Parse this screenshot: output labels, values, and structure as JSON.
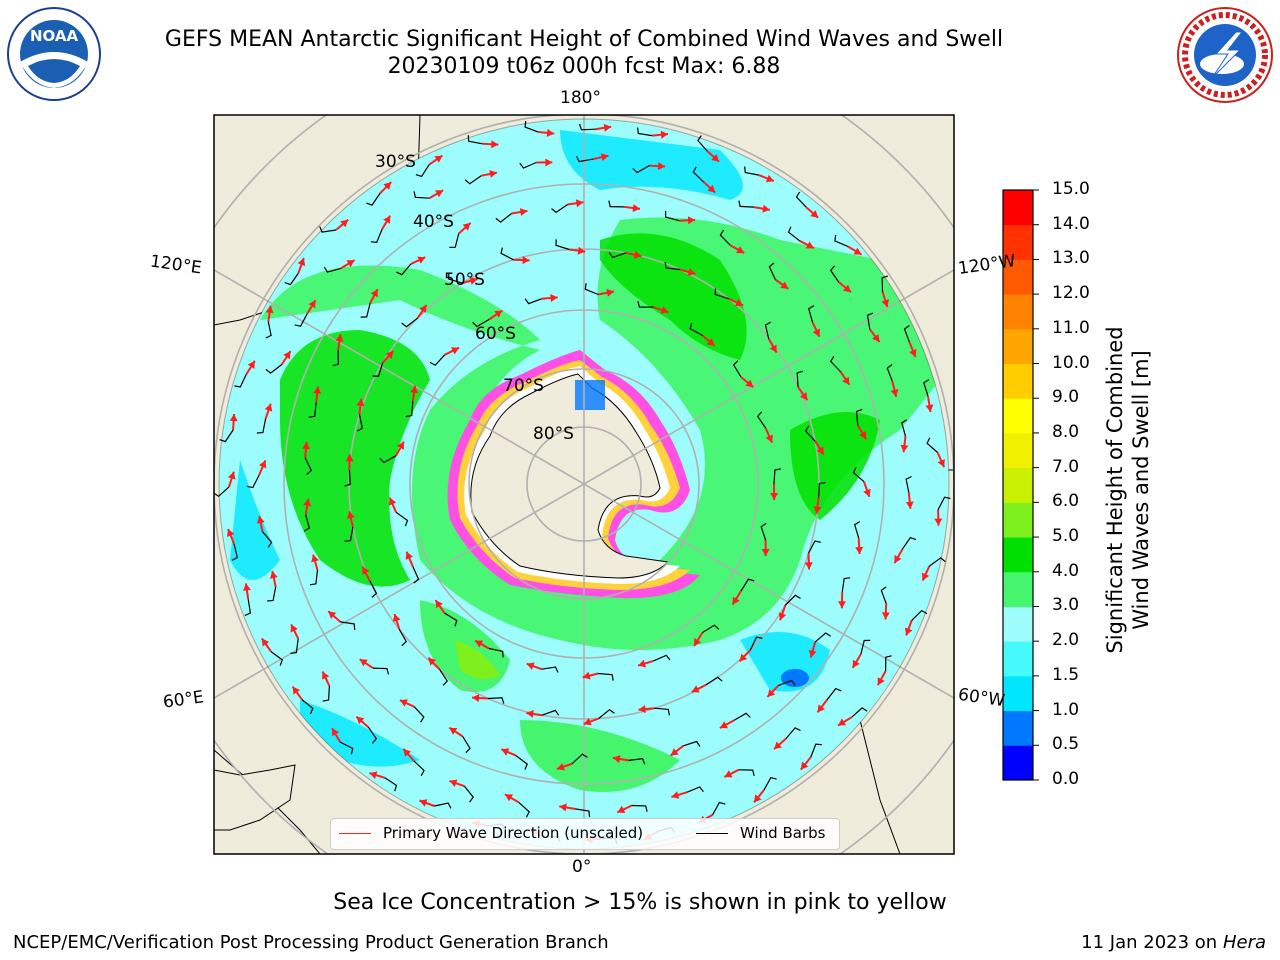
{
  "title": {
    "line1": "GEFS MEAN Antarctic Significant Height of Combined Wind Waves and Swell",
    "line2": "20230109 t06z 000h fcst   Max: 6.88"
  },
  "logos": {
    "left": "noaa-logo",
    "right": "nws-logo"
  },
  "map": {
    "projection": "south-polar-stereographic",
    "longitude_labels": [
      "180°",
      "120°E",
      "120°W",
      "60°E",
      "60°W",
      "0°"
    ],
    "latitude_labels": [
      "30°S",
      "40°S",
      "50°S",
      "60°S",
      "70°S",
      "80°S"
    ],
    "colors": {
      "land": "#efecdc",
      "ocean_low": "#9dfcfc",
      "ocean_mid": "#00e6ff",
      "wave_3_4": "#46f56e",
      "wave_4_5": "#00e000",
      "wave_5_6": "#7df01e",
      "ice_pink": "#ff50e6",
      "ice_yellow": "#ffd23c",
      "arrow": "#ff1e1e",
      "barb": "#000000"
    }
  },
  "legend": {
    "primary_wave": "Primary Wave Direction (unscaled)",
    "wind_barbs": "Wind Barbs"
  },
  "colorbar": {
    "title_line1": "Significant Height of Combined",
    "title_line2": "Wind Waves and Swell [m]",
    "ticks": [
      "15.0",
      "14.0",
      "13.0",
      "12.0",
      "11.0",
      "10.0",
      "9.0",
      "8.0",
      "7.0",
      "6.0",
      "5.0",
      "4.0",
      "3.0",
      "2.0",
      "1.5",
      "1.0",
      "0.5",
      "0.0"
    ],
    "colors": [
      "#0000ff",
      "#0078ff",
      "#00e6ff",
      "#46fafa",
      "#9dfcfc",
      "#46f56e",
      "#00e000",
      "#7df01e",
      "#c8f000",
      "#f0f000",
      "#ffff00",
      "#ffcd00",
      "#ffa500",
      "#ff8200",
      "#ff5a00",
      "#ff3200",
      "#ff0000"
    ]
  },
  "subtitle": "Sea Ice Concentration > 15% is shown in pink to yellow",
  "footer": {
    "left": "NCEP/EMC/Verification Post Processing Product Generation Branch",
    "right_date": "11 Jan 2023 on",
    "right_host": "Hera"
  }
}
